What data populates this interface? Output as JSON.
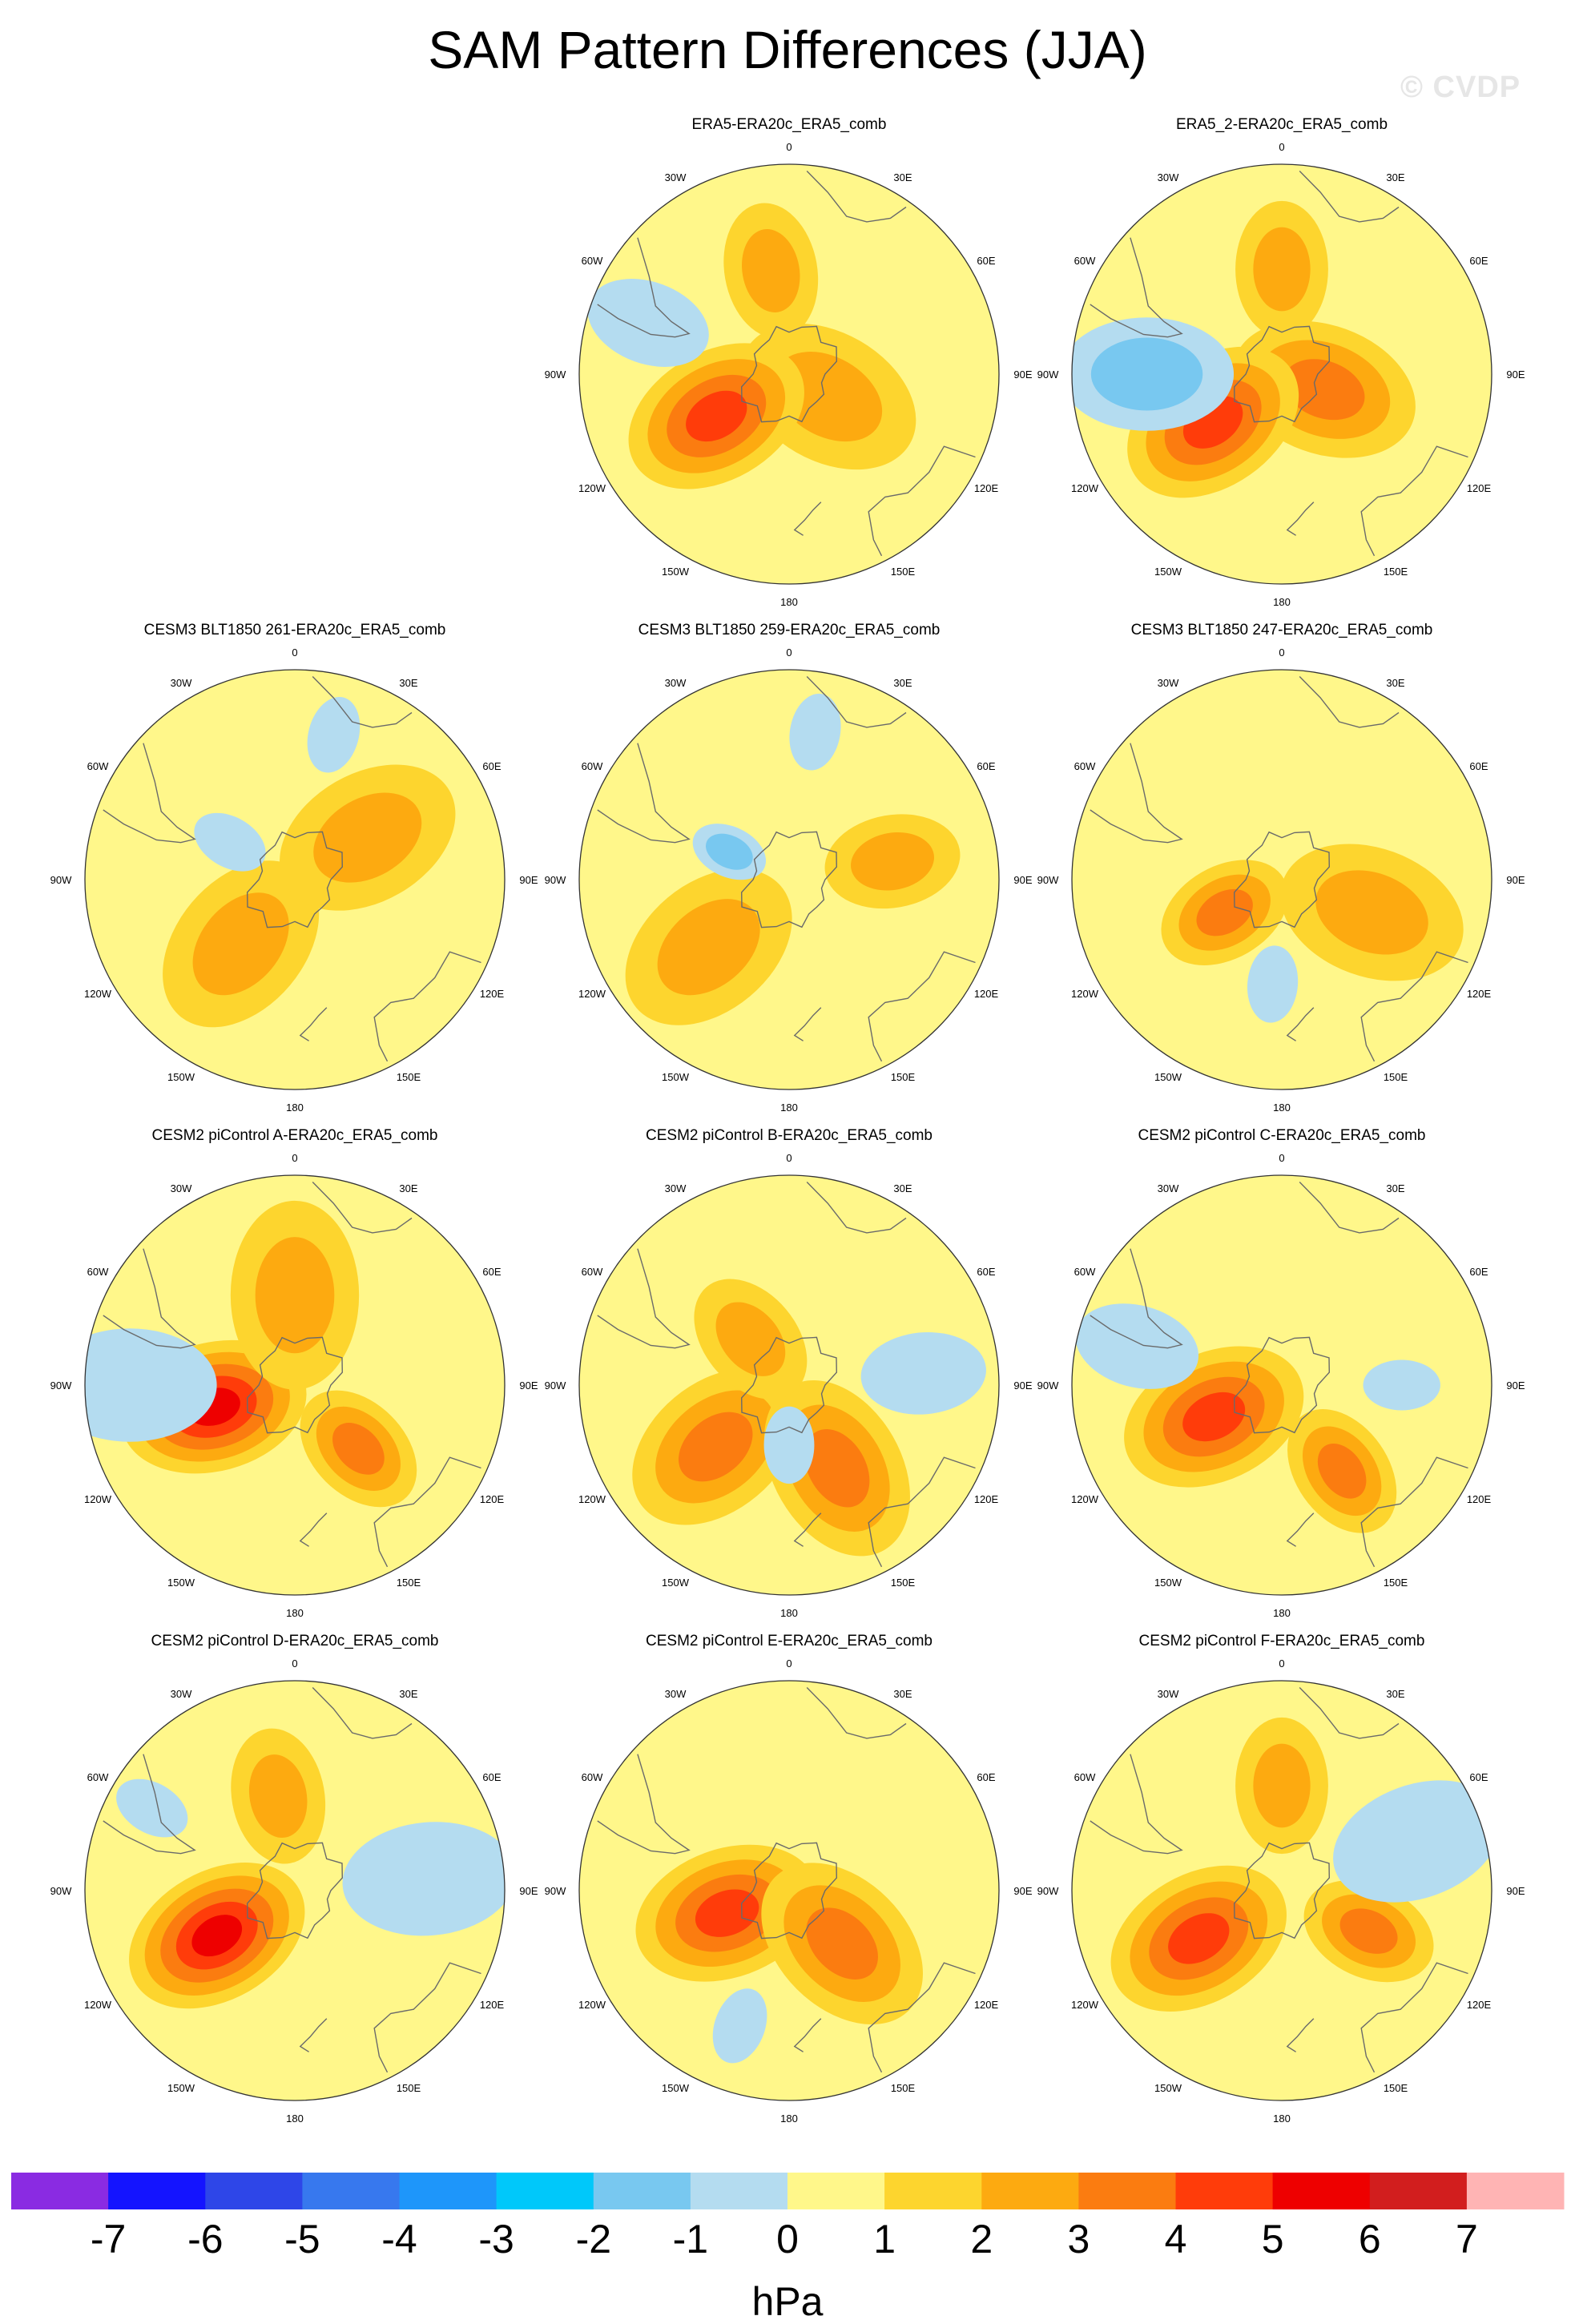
{
  "title": "SAM Pattern Differences (JJA)",
  "watermark": "© CVDP",
  "units": "hPa",
  "lon_labels": [
    "0",
    "30E",
    "60E",
    "90E",
    "120E",
    "150E",
    "180",
    "150W",
    "120W",
    "90W",
    "60W",
    "30W"
  ],
  "colorbar": {
    "ticks": [
      "-7",
      "-6",
      "-5",
      "-4",
      "-3",
      "-2",
      "-1",
      "0",
      "1",
      "2",
      "3",
      "4",
      "5",
      "6",
      "7"
    ],
    "colors": [
      "#8a2be2",
      "#1414ff",
      "#2e46e8",
      "#3778ee",
      "#1e96fa",
      "#00c8fa",
      "#78c8f0",
      "#b4dcf0",
      "#fff78a",
      "#fdd52e",
      "#fdaa10",
      "#fb7c10",
      "#ff3c0a",
      "#ee0000",
      "#d21e1e",
      "#ffb4b4"
    ]
  },
  "chart_data": {
    "type": "polar-contour-maps",
    "title": "SAM Pattern Differences (JJA)",
    "projection": "south-polar stereographic",
    "units": "hPa",
    "levels": [
      -7,
      -6,
      -5,
      -4,
      -3,
      -2,
      -1,
      0,
      1,
      2,
      3,
      4,
      5,
      6,
      7
    ],
    "panels": [
      {
        "title": "ERA5-ERA20c_ERA5_comb",
        "position": "row1-col2",
        "features": [
          {
            "type": "positive",
            "lon": 120,
            "lat": -75,
            "peak": 3,
            "extent": "large",
            "level": 2
          },
          {
            "type": "positive",
            "lon": -120,
            "lat": -62,
            "peak": 4,
            "extent": "large",
            "level": 4
          },
          {
            "type": "positive",
            "lon": -10,
            "lat": -55,
            "peak": 2,
            "extent": "medium",
            "level": 2
          },
          {
            "type": "negative",
            "lon": -70,
            "lat": -40,
            "peak": -1,
            "extent": "medium",
            "level": -1
          }
        ]
      },
      {
        "title": "ERA5_2-ERA20c_ERA5_comb",
        "position": "row1-col3",
        "features": [
          {
            "type": "positive",
            "lon": 110,
            "lat": -75,
            "peak": 3,
            "extent": "large",
            "level": 3
          },
          {
            "type": "positive",
            "lon": -125,
            "lat": -62,
            "peak": 4,
            "extent": "large",
            "level": 4
          },
          {
            "type": "positive",
            "lon": 0,
            "lat": -55,
            "peak": 2,
            "extent": "medium",
            "level": 2
          },
          {
            "type": "negative",
            "lon": -90,
            "lat": -45,
            "peak": -2,
            "extent": "large",
            "level": -2
          }
        ]
      },
      {
        "title": "CESM3 BLT1850 261-ERA20c_ERA5_comb",
        "position": "row2-col1",
        "features": [
          {
            "type": "positive",
            "lon": -140,
            "lat": -62,
            "peak": 2,
            "extent": "large",
            "level": 2
          },
          {
            "type": "positive",
            "lon": 60,
            "lat": -62,
            "peak": 2,
            "extent": "large",
            "level": 2
          },
          {
            "type": "negative",
            "lon": -60,
            "lat": -65,
            "peak": -1,
            "extent": "small",
            "level": -1
          },
          {
            "type": "negative",
            "lon": 15,
            "lat": -40,
            "peak": -1,
            "extent": "small",
            "level": -1
          }
        ]
      },
      {
        "title": "CESM3 BLT1850 259-ERA20c_ERA5_comb",
        "position": "row2-col2",
        "features": [
          {
            "type": "positive",
            "lon": -130,
            "lat": -55,
            "peak": 3,
            "extent": "large",
            "level": 2
          },
          {
            "type": "positive",
            "lon": 80,
            "lat": -55,
            "peak": 2,
            "extent": "medium",
            "level": 2
          },
          {
            "type": "negative",
            "lon": -65,
            "lat": -68,
            "peak": -2,
            "extent": "small",
            "level": -2
          },
          {
            "type": "negative",
            "lon": 10,
            "lat": -40,
            "peak": -1,
            "extent": "small",
            "level": -1
          }
        ]
      },
      {
        "title": "CESM3 BLT1850 247-ERA20c_ERA5_comb",
        "position": "row2-col3",
        "features": [
          {
            "type": "positive",
            "lon": -120,
            "lat": -68,
            "peak": 4,
            "extent": "medium",
            "level": 3
          },
          {
            "type": "positive",
            "lon": 110,
            "lat": -58,
            "peak": 2,
            "extent": "large",
            "level": 2
          },
          {
            "type": "negative",
            "lon": -175,
            "lat": -55,
            "peak": -1,
            "extent": "small",
            "level": -1
          }
        ]
      },
      {
        "title": "CESM2 piControl A-ERA20c_ERA5_comb",
        "position": "row3-col1",
        "features": [
          {
            "type": "positive",
            "lon": -105,
            "lat": -62,
            "peak": 5,
            "extent": "large",
            "level": 5
          },
          {
            "type": "positive",
            "lon": 135,
            "lat": -60,
            "peak": 3,
            "extent": "medium",
            "level": 3
          },
          {
            "type": "positive",
            "lon": 0,
            "lat": -60,
            "peak": 2,
            "extent": "large",
            "level": 2
          },
          {
            "type": "negative",
            "lon": -90,
            "lat": -35,
            "peak": -1,
            "extent": "large",
            "level": -1
          }
        ]
      },
      {
        "title": "CESM2 piControl B-ERA20c_ERA5_comb",
        "position": "row3-col2",
        "features": [
          {
            "type": "positive",
            "lon": -130,
            "lat": -58,
            "peak": 3,
            "extent": "large",
            "level": 3
          },
          {
            "type": "positive",
            "lon": 150,
            "lat": -58,
            "peak": 3,
            "extent": "large",
            "level": 3
          },
          {
            "type": "positive",
            "lon": -40,
            "lat": -70,
            "peak": 2,
            "extent": "medium",
            "level": 2
          },
          {
            "type": "negative",
            "lon": 85,
            "lat": -45,
            "peak": -1,
            "extent": "medium",
            "level": -1
          },
          {
            "type": "negative",
            "lon": 180,
            "lat": -70,
            "peak": -1,
            "extent": "small",
            "level": -1
          }
        ]
      },
      {
        "title": "CESM2 piControl C-ERA20c_ERA5_comb",
        "position": "row3-col3",
        "features": [
          {
            "type": "positive",
            "lon": -115,
            "lat": -65,
            "peak": 4,
            "extent": "large",
            "level": 4
          },
          {
            "type": "positive",
            "lon": 145,
            "lat": -55,
            "peak": 3,
            "extent": "medium",
            "level": 3
          },
          {
            "type": "negative",
            "lon": 90,
            "lat": -50,
            "peak": -1,
            "extent": "small",
            "level": -1
          },
          {
            "type": "negative",
            "lon": -75,
            "lat": -40,
            "peak": -1,
            "extent": "medium",
            "level": -1
          }
        ]
      },
      {
        "title": "CESM2 piControl D-ERA20c_ERA5_comb",
        "position": "row4-col1",
        "features": [
          {
            "type": "positive",
            "lon": -120,
            "lat": -60,
            "peak": 5,
            "extent": "large",
            "level": 5
          },
          {
            "type": "positive",
            "lon": -10,
            "lat": -58,
            "peak": 2,
            "extent": "medium",
            "level": 2
          },
          {
            "type": "negative",
            "lon": 85,
            "lat": -45,
            "peak": -2,
            "extent": "large",
            "level": -1
          },
          {
            "type": "negative",
            "lon": -60,
            "lat": -35,
            "peak": -1,
            "extent": "small",
            "level": -1
          }
        ]
      },
      {
        "title": "CESM2 piControl E-ERA20c_ERA5_comb",
        "position": "row4-col2",
        "features": [
          {
            "type": "positive",
            "lon": -110,
            "lat": -68,
            "peak": 4,
            "extent": "large",
            "level": 4
          },
          {
            "type": "positive",
            "lon": 135,
            "lat": -65,
            "peak": 3,
            "extent": "large",
            "level": 3
          },
          {
            "type": "negative",
            "lon": -160,
            "lat": -42,
            "peak": -1,
            "extent": "small",
            "level": -1
          }
        ]
      },
      {
        "title": "CESM2 piControl F-ERA20c_ERA5_comb",
        "position": "row4-col3",
        "features": [
          {
            "type": "positive",
            "lon": -120,
            "lat": -58,
            "peak": 4,
            "extent": "large",
            "level": 4
          },
          {
            "type": "positive",
            "lon": 115,
            "lat": -58,
            "peak": 3,
            "extent": "medium",
            "level": 3
          },
          {
            "type": "positive",
            "lon": 0,
            "lat": -55,
            "peak": 2,
            "extent": "medium",
            "level": 2
          },
          {
            "type": "negative",
            "lon": 70,
            "lat": -42,
            "peak": -1,
            "extent": "large",
            "level": -1
          }
        ]
      }
    ]
  }
}
